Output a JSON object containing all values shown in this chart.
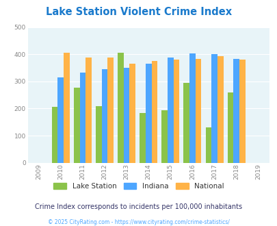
{
  "title": "Lake Station Violent Crime Index",
  "data_years": [
    2010,
    2011,
    2012,
    2013,
    2014,
    2015,
    2016,
    2017,
    2018
  ],
  "lake_station": [
    205,
    278,
    208,
    405,
    183,
    193,
    295,
    130,
    260
  ],
  "indiana": [
    315,
    332,
    345,
    350,
    365,
    387,
    404,
    400,
    382
  ],
  "national": [
    406,
    387,
    387,
    366,
    376,
    381,
    383,
    394,
    381
  ],
  "color_lake": "#8bc34a",
  "color_indiana": "#4da6ff",
  "color_national": "#ffb347",
  "legend_labels": [
    "Lake Station",
    "Indiana",
    "National"
  ],
  "ylim": [
    0,
    500
  ],
  "yticks": [
    0,
    100,
    200,
    300,
    400,
    500
  ],
  "subtitle": "Crime Index corresponds to incidents per 100,000 inhabitants",
  "footer": "© 2025 CityRating.com - https://www.cityrating.com/crime-statistics/",
  "title_color": "#1a7acc",
  "subtitle_color": "#333366",
  "footer_color": "#4da6ff",
  "bg_color": "#e8f4f8",
  "fig_bg": "#ffffff",
  "bar_width": 0.27,
  "grid_color": "#ffffff",
  "tick_label_color": "#888888"
}
